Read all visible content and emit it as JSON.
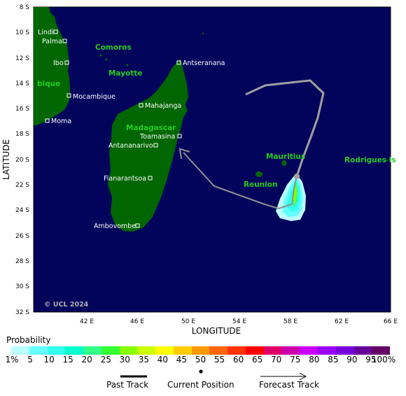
{
  "map": {
    "latitude_label": "LATITUDE",
    "longitude_label": "LONGITUDE",
    "lat_ticks": [
      "8 S",
      "10 S",
      "12 S",
      "14 S",
      "16 S",
      "18 S",
      "20 S",
      "22 S",
      "24 S",
      "26 S",
      "28 S",
      "30 S",
      "32 S"
    ],
    "lon_ticks": [
      "42 E",
      "46 E",
      "50 E",
      "54 E",
      "58 E",
      "62 E",
      "66 E"
    ],
    "countries": [
      "Comoros",
      "Mayotte",
      "bique",
      "Madagascar",
      "Mauritius",
      "Reunion",
      "Rodrigues Is"
    ],
    "cities": [
      "Lindi",
      "Palma",
      "Ibo",
      "Mocambique",
      "Moma",
      "Antseranana",
      "Mahajanga",
      "Toamasina",
      "Antananarivo",
      "Fianarantsoa",
      "Ambovombe"
    ],
    "copyright": "© UCL 2024",
    "ocean_color": "#02045c",
    "land_color": "#006600",
    "track_color": "#a0a0a0"
  },
  "legend": {
    "probability_title": "Probability",
    "probability_labels": [
      "1%",
      "5",
      "10",
      "15",
      "20",
      "25",
      "30",
      "35",
      "40",
      "45",
      "50",
      "55",
      "60",
      "65",
      "70",
      "75",
      "80",
      "85",
      "90",
      "95",
      "100%"
    ],
    "probability_colors": [
      "#bbffff",
      "#66ffff",
      "#33ffee",
      "#00ffcc",
      "#33ff88",
      "#33ff33",
      "#88ff00",
      "#ccff00",
      "#ffff00",
      "#ffcc00",
      "#ff9900",
      "#ff6600",
      "#ff3300",
      "#ff0000",
      "#dd0066",
      "#cc00aa",
      "#cc00ff",
      "#9900ff",
      "#7700dd",
      "#660099",
      "#660066"
    ],
    "past_track_label": "Past Track",
    "current_position_label": "Current Position",
    "forecast_track_label": "Forecast Track"
  }
}
